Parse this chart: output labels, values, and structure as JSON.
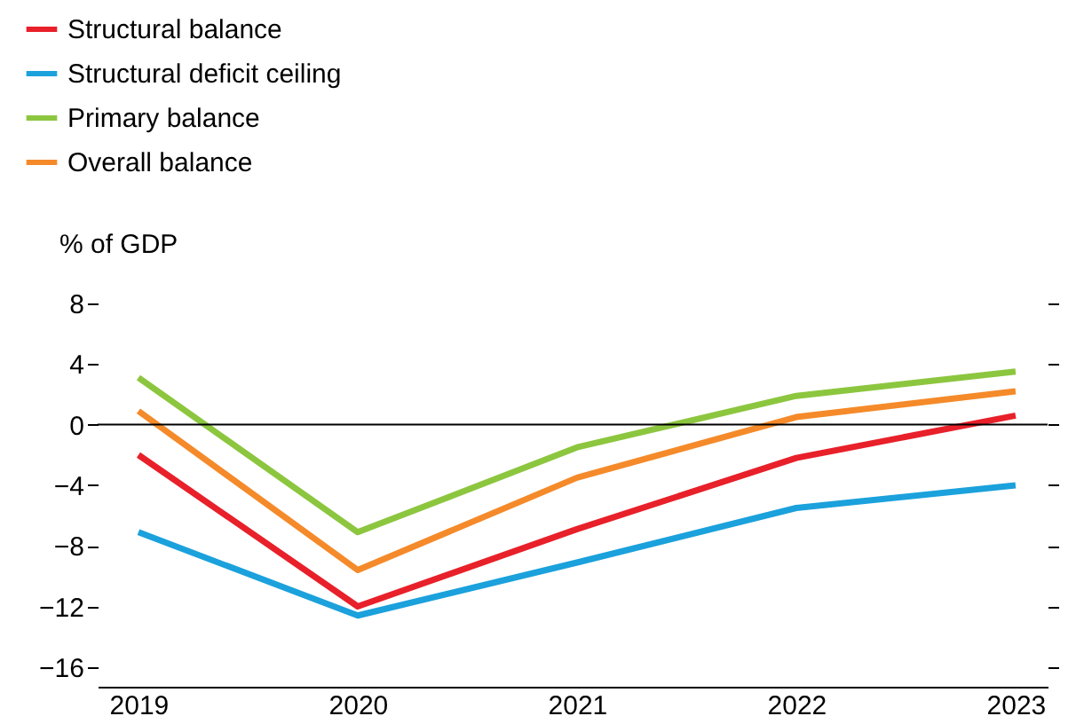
{
  "chart_data": {
    "type": "line",
    "ylabel": "% of GDP",
    "categories": [
      "2019",
      "2020",
      "2021",
      "2022",
      "2023"
    ],
    "series": [
      {
        "name": "Structural balance",
        "color": "#e8202a",
        "values": [
          -2.0,
          -12.0,
          -6.9,
          -2.2,
          0.6
        ]
      },
      {
        "name": "Structural deficit ceiling",
        "color": "#1ba1dc",
        "values": [
          -7.1,
          -12.6,
          -9.1,
          -5.5,
          -4.0
        ]
      },
      {
        "name": "Primary balance",
        "color": "#8cc63f",
        "values": [
          3.1,
          -7.1,
          -1.5,
          1.9,
          3.5
        ]
      },
      {
        "name": "Overall balance",
        "color": "#f58a2a",
        "values": [
          0.9,
          -9.6,
          -3.5,
          0.5,
          2.2
        ]
      }
    ],
    "ylim": [
      -17.3,
      8
    ],
    "yticks": [
      8,
      4,
      0,
      {
        "value": -4,
        "label": "−4"
      },
      {
        "value": -8,
        "label": "−8"
      },
      {
        "value": -12,
        "label": "−12"
      },
      {
        "value": -16,
        "label": "−16"
      }
    ],
    "ref_lines": [
      {
        "axis": "y",
        "value": 0,
        "color": "#000000"
      }
    ],
    "grid": false,
    "legend": "top left",
    "marker": "none",
    "line_style": "solid"
  }
}
